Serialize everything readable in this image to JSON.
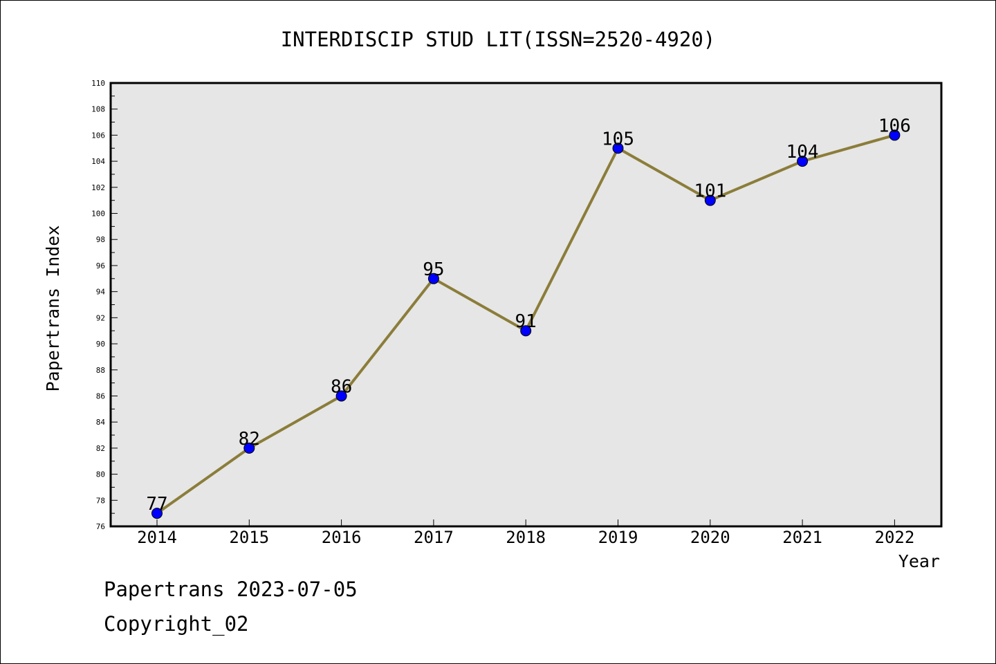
{
  "chart_data": {
    "type": "line",
    "title": "INTERDISCIP STUD LIT(ISSN=2520-4920)",
    "xlabel": "Year",
    "ylabel": "Papertrans Index",
    "categories": [
      "2014",
      "2015",
      "2016",
      "2017",
      "2018",
      "2019",
      "2020",
      "2021",
      "2022"
    ],
    "series": [
      {
        "values": [
          77,
          82,
          86,
          95,
          91,
          105,
          101,
          104,
          106
        ]
      }
    ],
    "data_labels": [
      "77",
      "82",
      "86",
      "95",
      "91",
      "105",
      "101",
      "104",
      "106"
    ],
    "ylim": [
      76,
      110
    ],
    "yticks": [
      "76",
      "78",
      "80",
      "82",
      "84",
      "86",
      "88",
      "90",
      "92",
      "94",
      "96",
      "98",
      "100",
      "102",
      "104",
      "106",
      "108",
      "110"
    ],
    "grid": false,
    "colors": {
      "line": "#8b7d3a",
      "marker": "#0000ff",
      "plot_background": "#e6e6e6"
    }
  },
  "footer": {
    "line1": "Papertrans 2023-07-05",
    "line2": "Copyright_02"
  }
}
